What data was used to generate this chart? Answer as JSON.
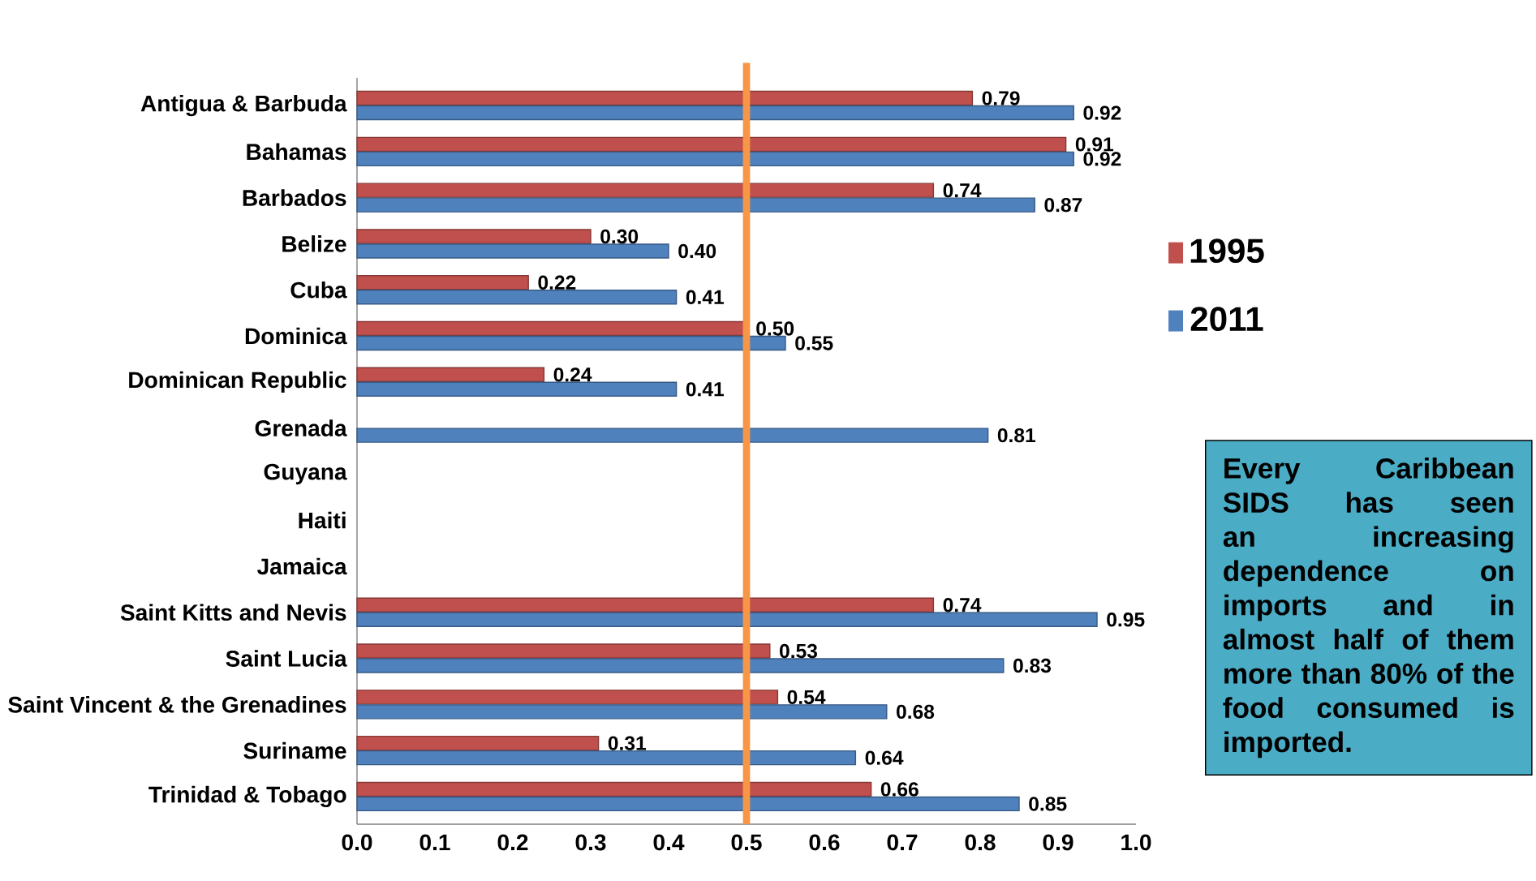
{
  "chart_data": {
    "type": "bar",
    "orientation": "horizontal",
    "categories": [
      "Antigua & Barbuda",
      "Bahamas",
      "Barbados",
      "Belize",
      "Cuba",
      "Dominica",
      "Dominican Republic",
      "Grenada",
      "Guyana",
      "Haiti",
      "Jamaica",
      "Saint Kitts and Nevis",
      "Saint Lucia",
      "Saint Vincent & the Grenadines",
      "Suriname",
      "Trinidad & Tobago"
    ],
    "series": [
      {
        "name": "1995",
        "color": "#c0504d",
        "values": [
          0.79,
          0.91,
          0.74,
          0.3,
          0.22,
          0.5,
          0.24,
          null,
          null,
          null,
          null,
          0.74,
          0.53,
          0.54,
          0.31,
          0.66
        ],
        "value_labels": [
          "0.79",
          "0.91",
          "0.74",
          "0.30",
          "0.22",
          "0.50",
          "0.24",
          null,
          null,
          null,
          null,
          "0.74",
          "0.53",
          "0.54",
          "0.31",
          "0.66"
        ]
      },
      {
        "name": "2011",
        "color": "#4f81bd",
        "values": [
          0.92,
          0.92,
          0.87,
          0.4,
          0.41,
          0.55,
          0.41,
          0.81,
          null,
          null,
          null,
          0.95,
          0.83,
          0.68,
          0.64,
          0.85
        ],
        "value_labels": [
          "0.92",
          "0.92",
          "0.87",
          "0.40",
          "0.41",
          "0.55",
          "0.41",
          "0.81",
          null,
          null,
          null,
          "0.95",
          "0.83",
          "0.68",
          "0.64",
          "0.85"
        ]
      }
    ],
    "xlim": [
      0,
      1
    ],
    "xticks": [
      {
        "value": 0,
        "label": "0.0"
      },
      {
        "value": 0.1,
        "label": "0.1"
      },
      {
        "value": 0.2,
        "label": "0.2"
      },
      {
        "value": 0.3,
        "label": "0.3"
      },
      {
        "value": 0.4,
        "label": "0.4"
      },
      {
        "value": 0.5,
        "label": "0.5"
      },
      {
        "value": 0.6,
        "label": "0.6"
      },
      {
        "value": 0.7,
        "label": "0.7"
      },
      {
        "value": 0.8,
        "label": "0.8"
      },
      {
        "value": 0.9,
        "label": "0.9"
      },
      {
        "value": 1,
        "label": "1.0"
      }
    ],
    "ref_lines": [
      {
        "axis": "x",
        "value": 0.5,
        "color": "#f79646"
      }
    ],
    "legend": "right",
    "grid": false,
    "annotations": [
      "Every Caribbean SIDS has seen an increasing dependence on imports and in almost half of them more than 80% of the food consumed is imported."
    ]
  }
}
